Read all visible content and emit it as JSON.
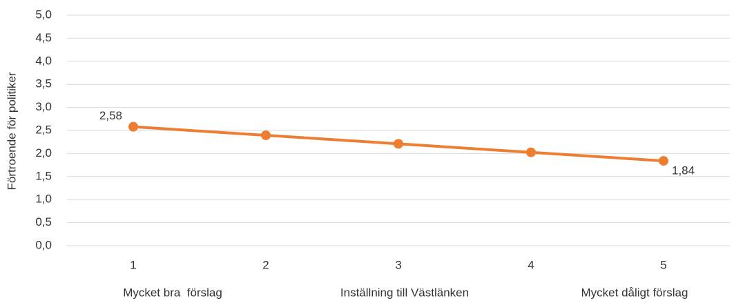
{
  "chart_data": {
    "type": "line",
    "y_label": "Förtroende för politiker",
    "x_label": "Inställning till Västlänken",
    "annotations": [
      "Mycket bra  förslag",
      "Mycket dåligt förslag"
    ],
    "categories": [
      "1",
      "2",
      "3",
      "4",
      "5"
    ],
    "series": [
      {
        "name": "Förtroende för politiker",
        "color": "#ed7d31",
        "values": [
          2.58,
          2.395,
          2.21,
          2.025,
          1.84
        ],
        "value_labels": [
          "2,58",
          null,
          null,
          null,
          "1,84"
        ]
      }
    ],
    "ylim": [
      0,
      5
    ],
    "yticks": [
      {
        "value": 0,
        "label": "0,0"
      },
      {
        "value": 0.5,
        "label": "0,5"
      },
      {
        "value": 1,
        "label": "1,0"
      },
      {
        "value": 1.5,
        "label": "1,5"
      },
      {
        "value": 2,
        "label": "2,0"
      },
      {
        "value": 2.5,
        "label": "2,5"
      },
      {
        "value": 3,
        "label": "3,0"
      },
      {
        "value": 3.5,
        "label": "3,5"
      },
      {
        "value": 4,
        "label": "4,0"
      },
      {
        "value": 4.5,
        "label": "4,5"
      },
      {
        "value": 5,
        "label": "5,0"
      }
    ],
    "grid": true
  }
}
